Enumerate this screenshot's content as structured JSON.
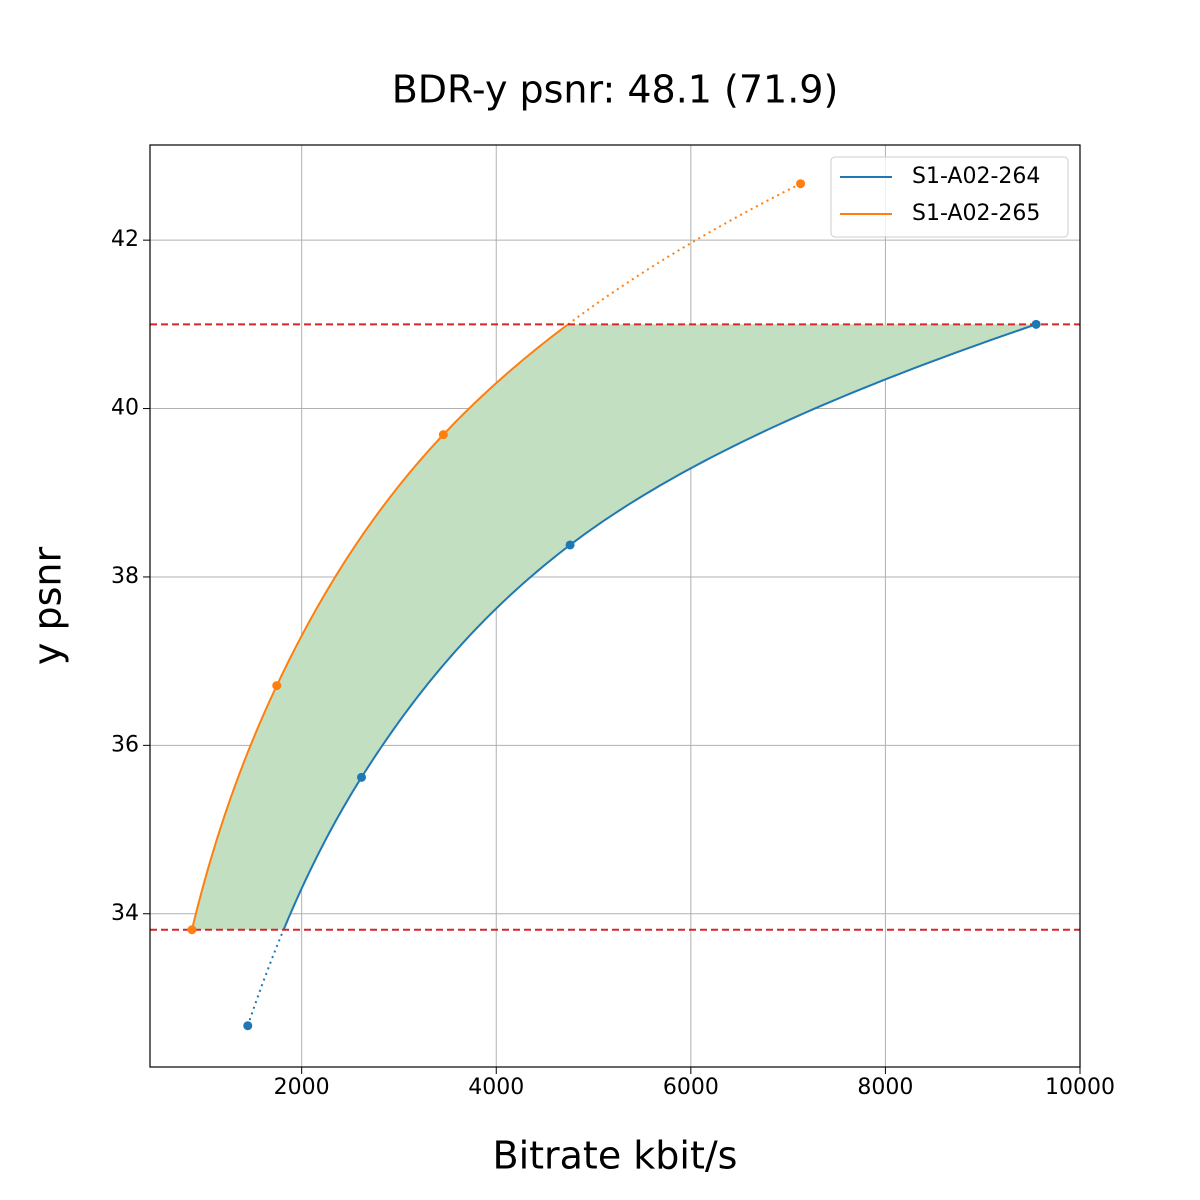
{
  "chart_data": {
    "type": "line",
    "title": "BDR-y psnr: 48.1 (71.9)",
    "x_label": "Bitrate kbit/s",
    "y_label": "y psnr",
    "series": [
      {
        "name": "S1-A02-264",
        "color": "#1f77b4",
        "x": [
          1446,
          2615,
          4759,
          9549
        ],
        "values": [
          32.67,
          35.62,
          38.38,
          41.0
        ]
      },
      {
        "name": "S1-A02-265",
        "color": "#ff7f0e",
        "x": [
          872,
          1744,
          3456,
          7128
        ],
        "values": [
          33.81,
          36.71,
          39.69,
          42.67
        ]
      }
    ],
    "reference_lines": {
      "values": [
        33.81,
        41.0
      ],
      "color": "#d62728"
    },
    "fill_color": "#c2dfc2",
    "xlim": [
      441,
      10000
    ],
    "ylim": [
      32.18,
      43.13
    ],
    "xticks": [
      2000,
      4000,
      6000,
      8000,
      10000
    ],
    "yticks": [
      34,
      36,
      38,
      40,
      42
    ],
    "grid": true,
    "legend": "upper right"
  }
}
